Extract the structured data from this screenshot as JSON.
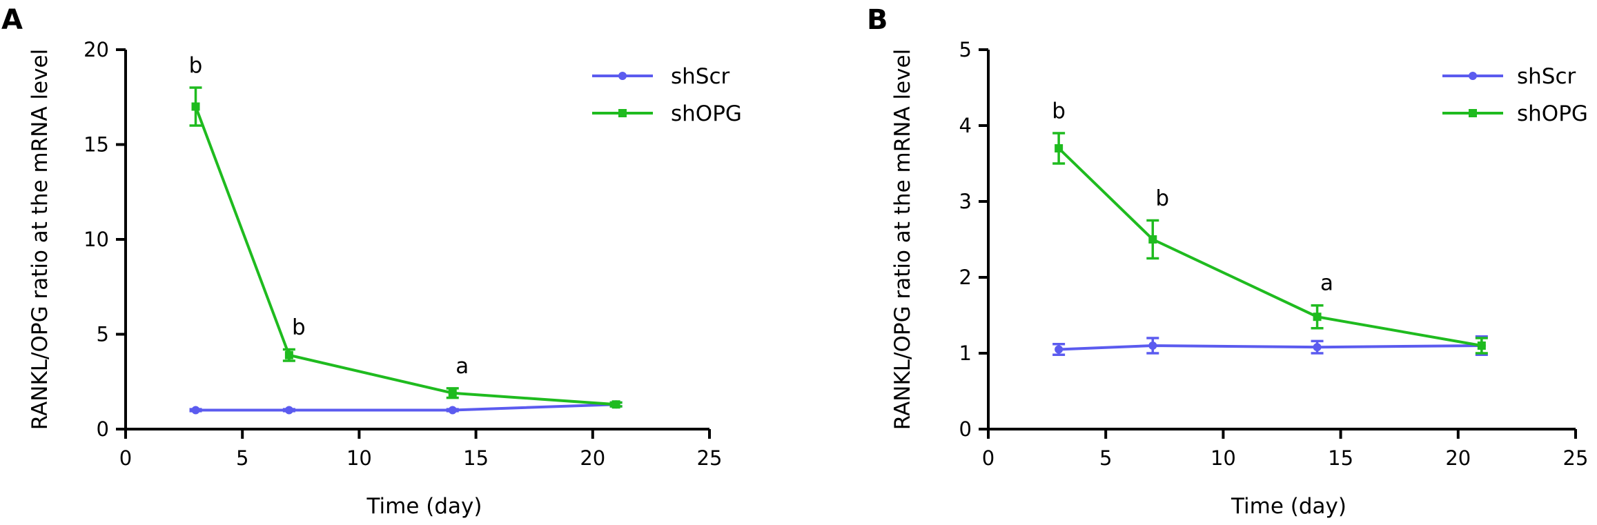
{
  "chart_data": [
    {
      "panel": "A",
      "type": "line",
      "xlabel": "Time (day)",
      "ylabel": "RANKL/OPG ratio at the mRNA level",
      "xlim": [
        0,
        25
      ],
      "ylim": [
        0,
        20
      ],
      "xticks": [
        0,
        5,
        10,
        15,
        20,
        25
      ],
      "yticks": [
        0,
        5,
        10,
        15,
        20
      ],
      "legend_position": "top-right",
      "grid": false,
      "series": [
        {
          "name": "shScr",
          "color": "#5b5bef",
          "marker": "circle",
          "x": [
            3,
            7,
            14,
            21
          ],
          "y": [
            1.0,
            1.0,
            1.0,
            1.3
          ],
          "err": [
            0.05,
            0.05,
            0.05,
            0.1
          ]
        },
        {
          "name": "shOPG",
          "color": "#1fbb1f",
          "marker": "square",
          "x": [
            3,
            7,
            14,
            21
          ],
          "y": [
            17.0,
            3.9,
            1.9,
            1.3
          ],
          "err": [
            1.0,
            0.3,
            0.25,
            0.1
          ]
        }
      ],
      "annotations": [
        {
          "text": "b",
          "x": 3,
          "y": 18.0
        },
        {
          "text": "b",
          "x": 7,
          "y": 4.2
        },
        {
          "text": "a",
          "x": 14,
          "y": 2.15
        }
      ]
    },
    {
      "panel": "B",
      "type": "line",
      "xlabel": "Time (day)",
      "ylabel": "RANKL/OPG ratio at the mRNA level",
      "xlim": [
        0,
        25
      ],
      "ylim": [
        0,
        5
      ],
      "xticks": [
        0,
        5,
        10,
        15,
        20,
        25
      ],
      "yticks": [
        0,
        1,
        2,
        3,
        4,
        5
      ],
      "legend_position": "top-right",
      "grid": false,
      "series": [
        {
          "name": "shScr",
          "color": "#5b5bef",
          "marker": "circle",
          "x": [
            3,
            7,
            14,
            21
          ],
          "y": [
            1.05,
            1.1,
            1.08,
            1.1
          ],
          "err": [
            0.07,
            0.1,
            0.08,
            0.12
          ]
        },
        {
          "name": "shOPG",
          "color": "#1fbb1f",
          "marker": "square",
          "x": [
            3,
            7,
            14,
            21
          ],
          "y": [
            3.7,
            2.5,
            1.48,
            1.1
          ],
          "err": [
            0.2,
            0.25,
            0.15,
            0.1
          ]
        }
      ],
      "annotations": [
        {
          "text": "b",
          "x": 3,
          "y": 3.9
        },
        {
          "text": "b",
          "x": 7,
          "y": 2.75
        },
        {
          "text": "a",
          "x": 14,
          "y": 1.63
        }
      ]
    }
  ]
}
